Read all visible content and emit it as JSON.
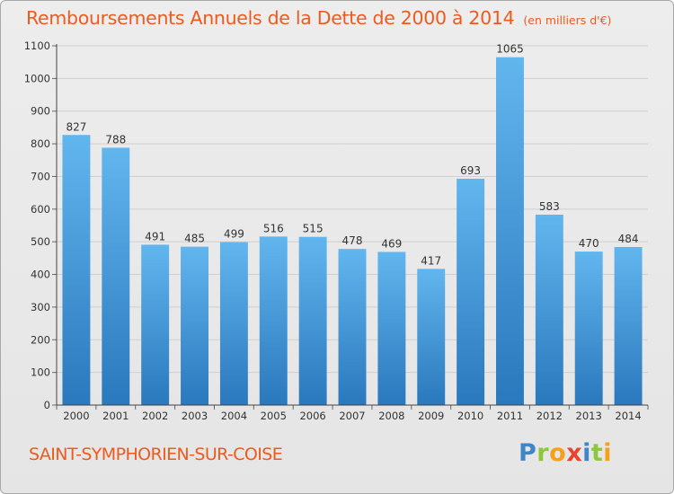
{
  "colors": {
    "title": "#ee5a1c",
    "bar_light": "#62b6ee",
    "bar_dark": "#2a78bd",
    "grid": "#cfcfcf",
    "axis_text": "#333333"
  },
  "brand": {
    "letters": [
      {
        "char": "P",
        "color": "#3f86c8"
      },
      {
        "char": "r",
        "color": "#8dc63f"
      },
      {
        "char": "o",
        "color": "#f7a11a"
      },
      {
        "char": "x",
        "color": "#e8452c"
      },
      {
        "char": "i",
        "color": "#3f86c8"
      },
      {
        "char": "t",
        "color": "#8dc63f"
      },
      {
        "char": "i",
        "color": "#f7a11a"
      }
    ]
  },
  "footer": {
    "commune": "SAINT-SYMPHORIEN-SUR-COISE"
  },
  "chart_data": {
    "type": "bar",
    "title": "Remboursements Annuels de la Dette de 2000 à 2014",
    "unit_label": "(en milliers d'€)",
    "xlabel": "",
    "ylabel": "",
    "ylim": [
      0,
      1100
    ],
    "yticks": [
      0,
      100,
      200,
      300,
      400,
      500,
      600,
      700,
      800,
      900,
      1000,
      1100
    ],
    "grid": true,
    "categories": [
      "2000",
      "2001",
      "2002",
      "2003",
      "2004",
      "2005",
      "2006",
      "2007",
      "2008",
      "2009",
      "2010",
      "2011",
      "2012",
      "2013",
      "2014"
    ],
    "values": [
      827,
      788,
      491,
      485,
      499,
      516,
      515,
      478,
      469,
      417,
      693,
      1065,
      583,
      470,
      484
    ]
  }
}
